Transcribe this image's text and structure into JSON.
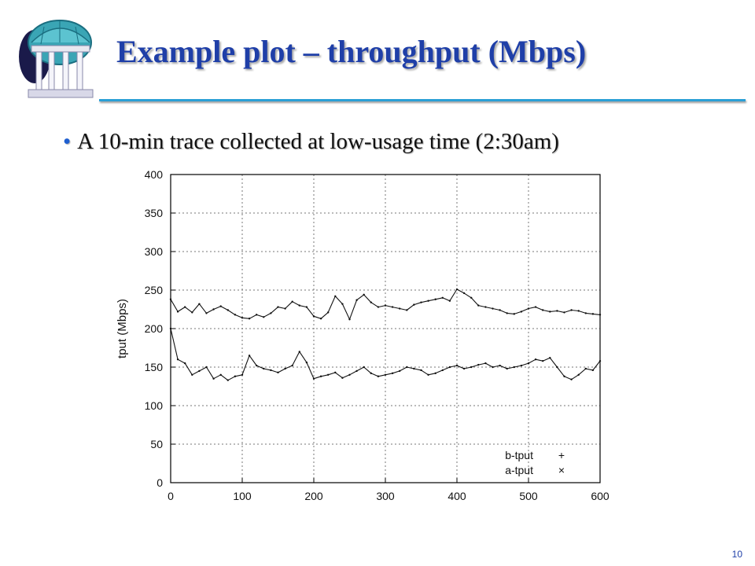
{
  "slide": {
    "title": "Example plot – throughput (Mbps)",
    "bullet": "A 10-min trace collected at low-usage time (2:30am)",
    "page_number": "10",
    "colors": {
      "title": "#1f3fa8",
      "rule": "#2a9fd6",
      "bullet_dot": "#1f5fd0"
    },
    "logo_icon": "domed-pavilion-icon"
  },
  "chart_data": {
    "type": "line",
    "title": "",
    "xlabel": "",
    "ylabel": "tput (Mbps)",
    "xlim": [
      0,
      600
    ],
    "ylim": [
      0,
      400
    ],
    "xticks": [
      0,
      100,
      200,
      300,
      400,
      500,
      600
    ],
    "yticks": [
      0,
      50,
      100,
      150,
      200,
      250,
      300,
      350,
      400
    ],
    "grid": true,
    "legend_position": "bottom-right",
    "series": [
      {
        "name": "b-tput",
        "marker": "+",
        "x": [
          0,
          10,
          20,
          30,
          40,
          50,
          60,
          70,
          80,
          90,
          100,
          110,
          120,
          130,
          140,
          150,
          160,
          170,
          180,
          190,
          200,
          210,
          220,
          230,
          240,
          250,
          260,
          270,
          280,
          290,
          300,
          310,
          320,
          330,
          340,
          350,
          360,
          370,
          380,
          390,
          400,
          410,
          420,
          430,
          440,
          450,
          460,
          470,
          480,
          490,
          500,
          510,
          520,
          530,
          540,
          550,
          560,
          570,
          580,
          590,
          600
        ],
        "values": [
          238,
          222,
          228,
          221,
          232,
          220,
          225,
          229,
          224,
          218,
          214,
          213,
          218,
          215,
          220,
          228,
          226,
          235,
          230,
          228,
          216,
          213,
          221,
          242,
          232,
          212,
          237,
          244,
          234,
          228,
          230,
          228,
          226,
          224,
          231,
          234,
          236,
          238,
          240,
          236,
          251,
          246,
          240,
          230,
          228,
          226,
          224,
          220,
          219,
          222,
          226,
          228,
          224,
          222,
          223,
          221,
          224,
          223,
          220,
          219,
          218
        ]
      },
      {
        "name": "a-tput",
        "marker": "×",
        "x": [
          0,
          10,
          20,
          30,
          40,
          50,
          60,
          70,
          80,
          90,
          100,
          110,
          120,
          130,
          140,
          150,
          160,
          170,
          180,
          190,
          200,
          210,
          220,
          230,
          240,
          250,
          260,
          270,
          280,
          290,
          300,
          310,
          320,
          330,
          340,
          350,
          360,
          370,
          380,
          390,
          400,
          410,
          420,
          430,
          440,
          450,
          460,
          470,
          480,
          490,
          500,
          510,
          520,
          530,
          540,
          550,
          560,
          570,
          580,
          590,
          600
        ],
        "values": [
          200,
          160,
          155,
          140,
          145,
          150,
          135,
          140,
          133,
          138,
          140,
          165,
          152,
          148,
          146,
          143,
          148,
          152,
          170,
          156,
          135,
          138,
          140,
          143,
          136,
          140,
          145,
          150,
          142,
          138,
          140,
          142,
          145,
          150,
          148,
          146,
          140,
          142,
          146,
          150,
          152,
          148,
          150,
          153,
          155,
          150,
          152,
          148,
          150,
          152,
          155,
          160,
          158,
          162,
          150,
          138,
          134,
          140,
          148,
          146,
          158
        ]
      }
    ]
  }
}
